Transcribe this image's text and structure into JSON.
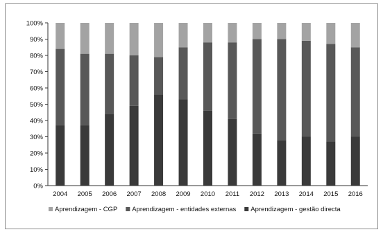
{
  "chart_data": {
    "type": "bar",
    "stacked": true,
    "normalized": true,
    "categories": [
      "2004",
      "2005",
      "2006",
      "2007",
      "2008",
      "2009",
      "2010",
      "2011",
      "2012",
      "2013",
      "2014",
      "2015",
      "2016"
    ],
    "series": [
      {
        "name": "Aprendizagem - gestão directa",
        "color": "#3a3a3a",
        "values": [
          37,
          37,
          44,
          49,
          56,
          53,
          46,
          41,
          32,
          28,
          30,
          27,
          30
        ]
      },
      {
        "name": "Aprendizagem - entidades externas",
        "color": "#585858",
        "values": [
          47,
          44,
          37,
          31,
          23,
          32,
          42,
          47,
          58,
          62,
          59,
          60,
          55
        ]
      },
      {
        "name": "Aprendizagem - CGP",
        "color": "#a3a3a3",
        "values": [
          16,
          19,
          19,
          20,
          21,
          15,
          12,
          12,
          10,
          10,
          11,
          13,
          15
        ]
      }
    ],
    "legend_order": [
      2,
      1,
      0
    ],
    "yticks": [
      "0%",
      "10%",
      "20%",
      "30%",
      "40%",
      "50%",
      "60%",
      "70%",
      "80%",
      "90%",
      "100%"
    ],
    "ylim": [
      0,
      100
    ],
    "legend_position": "bottom"
  }
}
